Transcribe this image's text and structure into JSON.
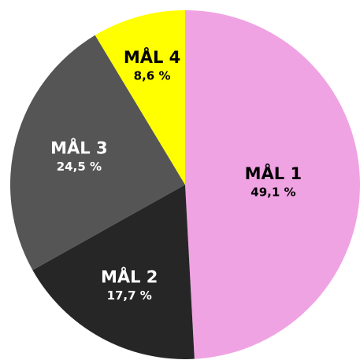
{
  "chart_data": {
    "type": "pie",
    "categories": [
      "MÅL 1",
      "MÅL 2",
      "MÅL 3",
      "MÅL 4"
    ],
    "values": [
      49.1,
      17.7,
      24.5,
      8.6
    ],
    "value_labels": [
      "49,1 %",
      "17,7 %",
      "24,5 %",
      "8,6 %"
    ],
    "colors": [
      "#f0a3e2",
      "#262626",
      "#555555",
      "#ffff00"
    ],
    "label_colors": [
      "#000000",
      "#ffffff",
      "#ffffff",
      "#000000"
    ]
  }
}
